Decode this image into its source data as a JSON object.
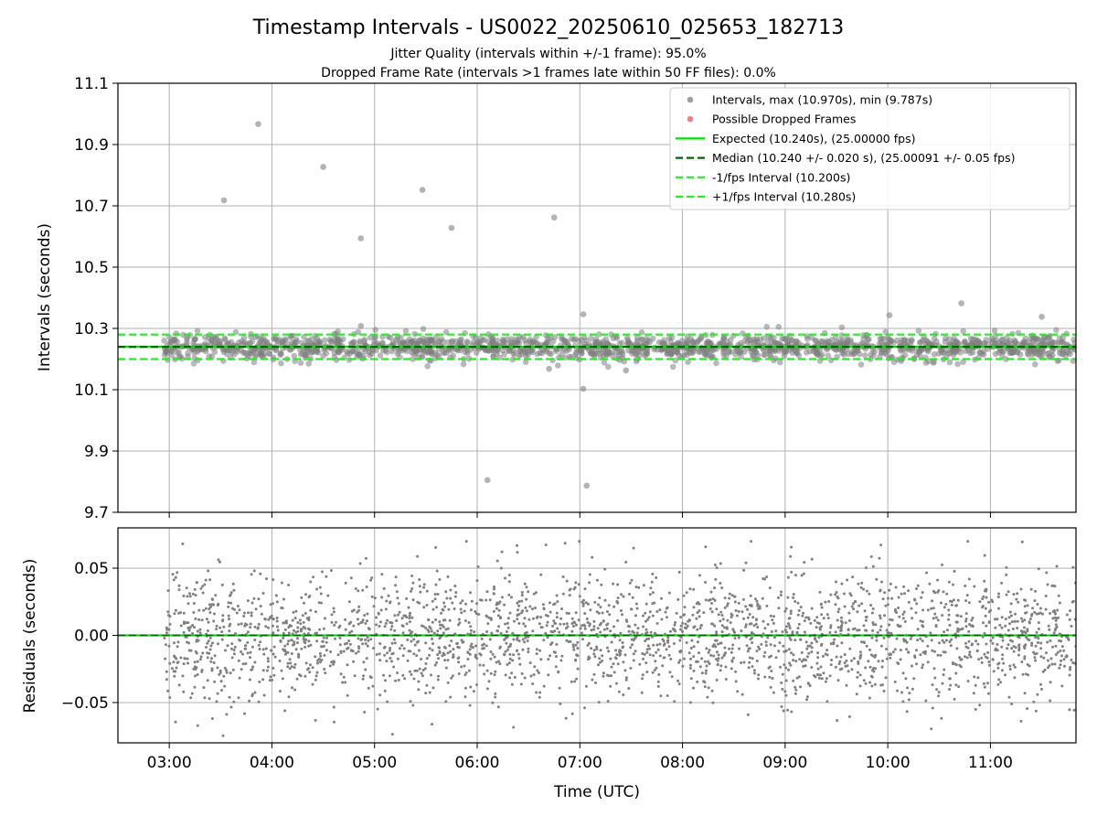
{
  "title": "Timestamp Intervals - US0022_20250610_025653_182713",
  "subtitle_jitter": "Jitter Quality (intervals within +/-1 frame): 95.0%",
  "subtitle_dropped": "Dropped Frame Rate (intervals >1 frames late within 50 FF files): 0.0%",
  "colors": {
    "points": "#808080",
    "dropped": "#ff0000",
    "expected": "#00e000",
    "median": "#006400",
    "bounds": "#22ee22",
    "grid": "#b0b0b0"
  },
  "chart_data": [
    {
      "type": "scatter",
      "ylabel": "Intervals (seconds)",
      "xlim": [
        "02:30",
        "11:50"
      ],
      "ylim": [
        9.7,
        11.1
      ],
      "yticks": [
        {
          "value": 9.7,
          "label": "9.7"
        },
        {
          "value": 9.9,
          "label": "9.9"
        },
        {
          "value": 10.1,
          "label": "10.1"
        },
        {
          "value": 10.3,
          "label": "10.3"
        },
        {
          "value": 10.5,
          "label": "10.5"
        },
        {
          "value": 10.7,
          "label": "10.7"
        },
        {
          "value": 10.9,
          "label": "10.9"
        },
        {
          "value": 11.1,
          "label": "11.1"
        }
      ],
      "grid": true,
      "legend_position": "top-right",
      "legend": [
        {
          "label": "Intervals, max (10.970s), min (9.787s)",
          "kind": "marker",
          "color": "#a0a0a0"
        },
        {
          "label": "Possible Dropped Frames",
          "kind": "marker",
          "color": "#f08080"
        },
        {
          "label": "Expected (10.240s), (25.00000 fps)",
          "kind": "solid",
          "color": "#00e000"
        },
        {
          "label": "Median (10.240 +/- 0.020 s), (25.00091 +/- 0.05 fps)",
          "kind": "dashed",
          "color": "#006400"
        },
        {
          "label": "-1/fps Interval (10.200s)",
          "kind": "dashed",
          "color": "#22ee22"
        },
        {
          "label": "+1/fps Interval (10.280s)",
          "kind": "dashed",
          "color": "#22ee22"
        }
      ],
      "series_range": [
        "02:57",
        "11:50"
      ],
      "expected": 10.24,
      "median": 10.24,
      "minus_interval": 10.2,
      "plus_interval": 10.28,
      "band_spread": 0.02,
      "point_count": 1600,
      "outliers": [
        {
          "x": "03:32",
          "y": 10.718
        },
        {
          "x": "03:52",
          "y": 10.967
        },
        {
          "x": "04:30",
          "y": 10.827
        },
        {
          "x": "04:52",
          "y": 10.594
        },
        {
          "x": "05:28",
          "y": 10.752
        },
        {
          "x": "05:45",
          "y": 10.628
        },
        {
          "x": "06:06",
          "y": 9.805
        },
        {
          "x": "06:45",
          "y": 10.662
        },
        {
          "x": "07:04",
          "y": 9.787
        },
        {
          "x": "07:02",
          "y": 10.103
        },
        {
          "x": "07:02",
          "y": 10.346
        },
        {
          "x": "10:01",
          "y": 10.343
        },
        {
          "x": "10:43",
          "y": 10.382
        },
        {
          "x": "11:30",
          "y": 10.338
        },
        {
          "x": "04:52",
          "y": 10.308
        },
        {
          "x": "06:42",
          "y": 10.168
        },
        {
          "x": "07:27",
          "y": 10.163
        }
      ]
    },
    {
      "type": "scatter",
      "xlabel": "Time (UTC)",
      "ylabel": "Residuals (seconds)",
      "xlim": [
        "02:30",
        "11:50"
      ],
      "ylim": [
        -0.08,
        0.08
      ],
      "xticks": [
        "03:00",
        "04:00",
        "05:00",
        "06:00",
        "07:00",
        "08:00",
        "09:00",
        "10:00",
        "11:00"
      ],
      "yticks": [
        {
          "value": 0.05,
          "label": "0.05"
        },
        {
          "value": 0.0,
          "label": "0.00"
        },
        {
          "value": -0.05,
          "label": "−0.05"
        }
      ],
      "grid": true,
      "series_range": [
        "02:57",
        "11:50"
      ],
      "residual_spread": 0.024,
      "point_count": 2600,
      "zero_line": 0.0
    }
  ]
}
